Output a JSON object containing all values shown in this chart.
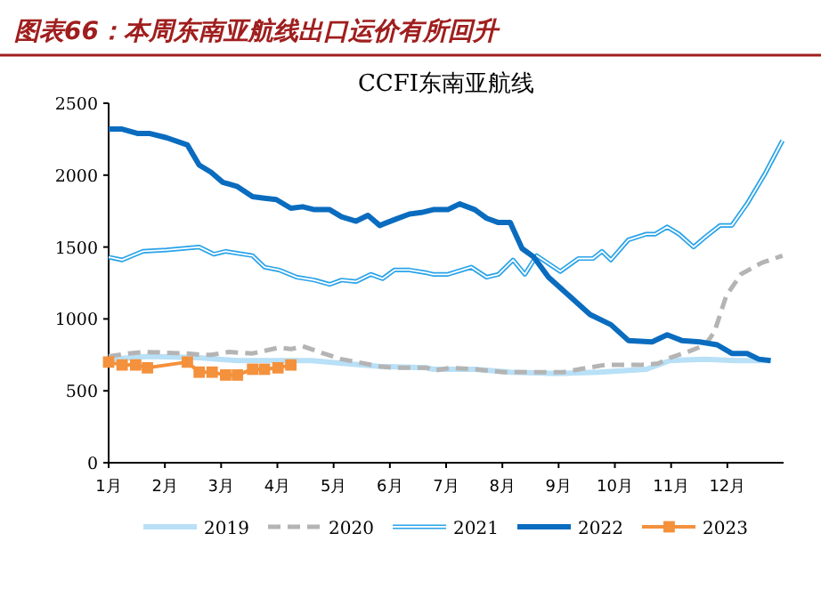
{
  "chart_data": {
    "type": "line",
    "title": "图表66：本周东南亚航线出口运价有所回升",
    "subtitle": "CCFI东南亚航线",
    "xlim": [
      1,
      13
    ],
    "xticks": [
      {
        "value": 1,
        "label": "1月"
      },
      {
        "value": 2,
        "label": "2月"
      },
      {
        "value": 3,
        "label": "3月"
      },
      {
        "value": 4,
        "label": "4月"
      },
      {
        "value": 5,
        "label": "5月"
      },
      {
        "value": 6,
        "label": "6月"
      },
      {
        "value": 7,
        "label": "7月"
      },
      {
        "value": 8,
        "label": "8月"
      },
      {
        "value": 9,
        "label": "9月"
      },
      {
        "value": 10,
        "label": "10月"
      },
      {
        "value": 11,
        "label": "11月"
      },
      {
        "value": 12,
        "label": "12月"
      }
    ],
    "ylim": [
      0,
      2500
    ],
    "yticks": [
      0,
      500,
      1000,
      1500,
      2000,
      2500
    ],
    "grid": false,
    "legend": "bottom",
    "series": [
      {
        "name": "2019",
        "color": "#b8e0f7",
        "line_style": "solid",
        "x": [
          1.0,
          1.72,
          2.61,
          3.29,
          3.98,
          4.61,
          5.19,
          5.82,
          6.66,
          6.77,
          7.51,
          8.14,
          8.98,
          9.72,
          10.56,
          10.98,
          11.61,
          12.14,
          12.77
        ],
        "values": [
          720,
          740,
          730,
          710,
          710,
          710,
          690,
          670,
          660,
          650,
          650,
          630,
          620,
          630,
          650,
          710,
          720,
          710,
          710
        ]
      },
      {
        "name": "2020",
        "color": "#b4b4b4",
        "line_style": "dashed",
        "x": [
          1.0,
          1.35,
          1.66,
          2.4,
          2.66,
          2.82,
          3.14,
          3.56,
          4.03,
          4.24,
          4.45,
          4.82,
          5.14,
          5.82,
          6.08,
          6.66,
          6.77,
          7.08,
          7.51,
          8.03,
          8.66,
          9.08,
          9.51,
          9.82,
          10.45,
          10.77,
          10.98,
          11.29,
          11.61,
          11.77,
          11.98,
          12.24,
          12.61,
          12.98
        ],
        "values": [
          740,
          760,
          770,
          760,
          750,
          750,
          770,
          760,
          800,
          790,
          810,
          760,
          720,
          670,
          660,
          660,
          640,
          660,
          650,
          630,
          630,
          630,
          660,
          680,
          680,
          690,
          730,
          770,
          820,
          910,
          1160,
          1310,
          1390,
          1440
        ]
      },
      {
        "name": "2021",
        "color": "#29a3e8",
        "line_style": "solid",
        "x": [
          1.0,
          1.24,
          1.61,
          2.03,
          2.61,
          2.87,
          3.08,
          3.56,
          3.77,
          4.03,
          4.35,
          4.66,
          4.93,
          5.14,
          5.4,
          5.66,
          5.87,
          6.08,
          6.35,
          6.66,
          6.77,
          7.03,
          7.45,
          7.72,
          7.93,
          8.19,
          8.4,
          8.61,
          9.03,
          9.35,
          9.61,
          9.77,
          9.93,
          10.24,
          10.56,
          10.72,
          10.93,
          11.14,
          11.4,
          11.61,
          11.87,
          12.08,
          12.35,
          12.67,
          12.98
        ],
        "values": [
          1430,
          1410,
          1470,
          1480,
          1500,
          1450,
          1470,
          1440,
          1360,
          1340,
          1290,
          1270,
          1240,
          1270,
          1260,
          1310,
          1280,
          1340,
          1340,
          1320,
          1310,
          1310,
          1360,
          1290,
          1310,
          1410,
          1310,
          1440,
          1330,
          1420,
          1420,
          1470,
          1410,
          1550,
          1590,
          1590,
          1640,
          1590,
          1500,
          1570,
          1650,
          1650,
          1800,
          2010,
          2240
        ]
      },
      {
        "name": "2022",
        "color": "#0a6cbf",
        "line_style": "solid",
        "x": [
          1.0,
          1.24,
          1.51,
          1.72,
          2.03,
          2.4,
          2.61,
          2.82,
          3.03,
          3.29,
          3.56,
          3.77,
          3.98,
          4.24,
          4.45,
          4.66,
          4.93,
          5.14,
          5.4,
          5.61,
          5.82,
          6.08,
          6.35,
          6.56,
          6.77,
          7.03,
          7.24,
          7.51,
          7.72,
          7.93,
          8.14,
          8.35,
          8.56,
          8.82,
          9.19,
          9.56,
          9.93,
          10.24,
          10.66,
          10.93,
          11.19,
          11.51,
          11.82,
          12.08,
          12.35,
          12.56,
          12.77
        ],
        "values": [
          2320,
          2320,
          2290,
          2290,
          2260,
          2210,
          2070,
          2020,
          1950,
          1920,
          1850,
          1840,
          1830,
          1770,
          1780,
          1760,
          1760,
          1710,
          1680,
          1720,
          1650,
          1690,
          1730,
          1740,
          1760,
          1760,
          1800,
          1760,
          1700,
          1670,
          1670,
          1490,
          1430,
          1290,
          1160,
          1030,
          960,
          850,
          840,
          890,
          850,
          840,
          820,
          760,
          760,
          720,
          710
        ]
      },
      {
        "name": "2023",
        "color": "#f4913c",
        "line_style": "solid",
        "marker": "square",
        "x": [
          1.0,
          1.24,
          1.48,
          1.69,
          2.4,
          2.61,
          2.84,
          3.08,
          3.29,
          3.56,
          3.77,
          4.01,
          4.24
        ],
        "values": [
          700,
          680,
          680,
          660,
          700,
          630,
          630,
          610,
          610,
          650,
          650,
          660,
          680
        ]
      }
    ]
  }
}
